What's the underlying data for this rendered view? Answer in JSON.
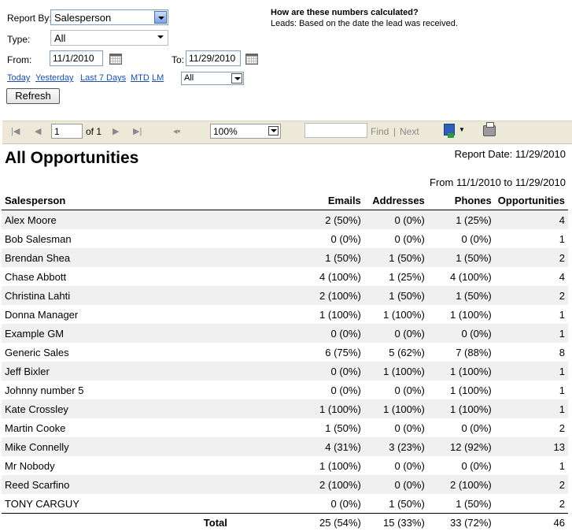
{
  "filters": {
    "report_by_label": "Report By:",
    "report_by_value": "Salesperson",
    "type_label": "Type:",
    "type_value": "All",
    "from_label": "From:",
    "from_value": "11/1/2010",
    "to_label": "To:",
    "to_value": "11/29/2010",
    "quick_links": [
      "Today",
      "Yesterday",
      "Last 7 Days",
      "MTD",
      "LM"
    ],
    "range_value": "All",
    "refresh_label": "Refresh"
  },
  "info": {
    "question": "How are these numbers calculated?",
    "answer": "Leads: Based on the date the lead was received."
  },
  "toolbar": {
    "page_value": "1",
    "page_of": "of 1",
    "zoom_value": "100%",
    "find_placeholder": "",
    "find_label": "Find",
    "separator": "|",
    "next_label": "Next"
  },
  "report": {
    "title": "All Opportunities",
    "report_date": "Report Date: 11/29/2010",
    "date_range": "From 11/1/2010 to 11/29/2010",
    "columns": [
      "Salesperson",
      "Emails",
      "Addresses",
      "Phones",
      "Opportunities"
    ],
    "rows": [
      [
        "Alex Moore",
        "2 (50%)",
        "0 (0%)",
        "1 (25%)",
        "4"
      ],
      [
        "Bob Salesman",
        "0 (0%)",
        "0 (0%)",
        "0 (0%)",
        "1"
      ],
      [
        "Brendan Shea",
        "1 (50%)",
        "1 (50%)",
        "1 (50%)",
        "2"
      ],
      [
        "Chase Abbott",
        "4 (100%)",
        "1 (25%)",
        "4 (100%)",
        "4"
      ],
      [
        "Christina Lahti",
        "2 (100%)",
        "1 (50%)",
        "1 (50%)",
        "2"
      ],
      [
        "Donna Manager",
        "1 (100%)",
        "1 (100%)",
        "1 (100%)",
        "1"
      ],
      [
        "Example GM",
        "0 (0%)",
        "0 (0%)",
        "0 (0%)",
        "1"
      ],
      [
        "Generic Sales",
        "6 (75%)",
        "5 (62%)",
        "7 (88%)",
        "8"
      ],
      [
        "Jeff Bixler",
        "0 (0%)",
        "1 (100%)",
        "1 (100%)",
        "1"
      ],
      [
        "Johnny number 5",
        "0 (0%)",
        "0 (0%)",
        "1 (100%)",
        "1"
      ],
      [
        "Kate Crossley",
        "1 (100%)",
        "1 (100%)",
        "1 (100%)",
        "1"
      ],
      [
        "Martin Cooke",
        "1 (50%)",
        "0 (0%)",
        "0 (0%)",
        "2"
      ],
      [
        "Mike Connelly",
        "4 (31%)",
        "3 (23%)",
        "12 (92%)",
        "13"
      ],
      [
        "Mr Nobody",
        "1 (100%)",
        "0 (0%)",
        "0 (0%)",
        "1"
      ],
      [
        "Reed Scarfino",
        "2 (100%)",
        "0 (0%)",
        "2 (100%)",
        "2"
      ],
      [
        "TONY CARGUY",
        "0 (0%)",
        "1 (50%)",
        "1 (50%)",
        "2"
      ]
    ],
    "total": {
      "label": "Total",
      "emails": "25 (54%)",
      "addresses": "15 (33%)",
      "phones": "33 (72%)",
      "opportunities": "46"
    }
  }
}
